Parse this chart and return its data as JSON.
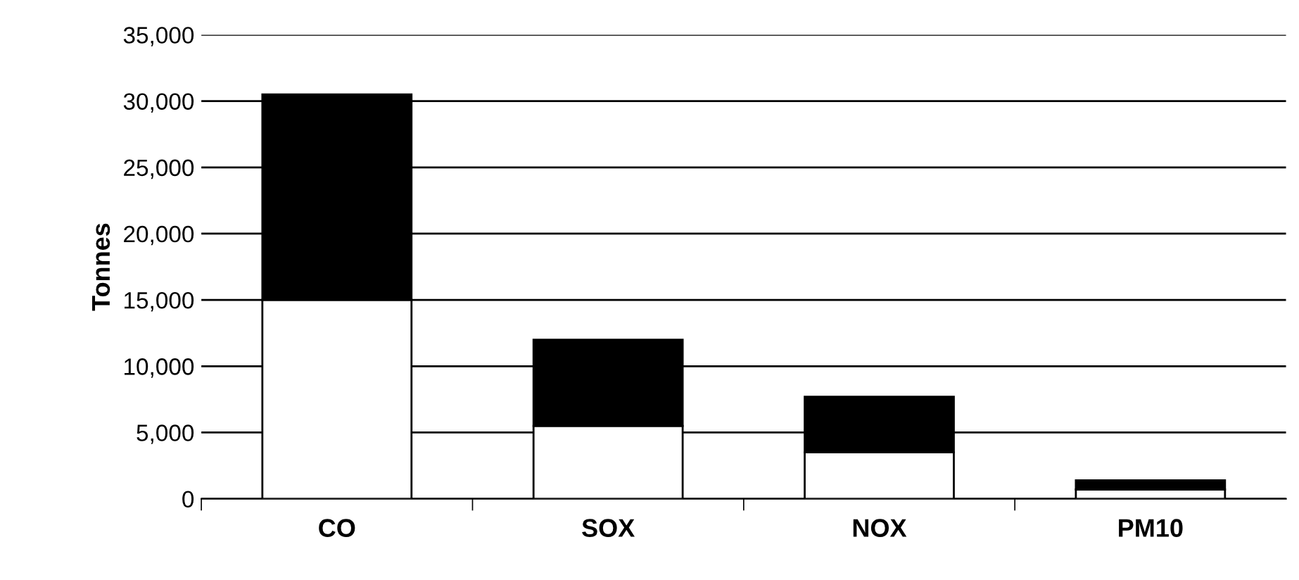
{
  "chart_data": {
    "type": "bar",
    "stacked": true,
    "ylabel": "Tonnes",
    "categories": [
      "CO",
      "SOX",
      "NOX",
      "PM10"
    ],
    "series": [
      {
        "color": "#ffffff",
        "values": [
          15000,
          5500,
          3500,
          700
        ]
      },
      {
        "color": "#000000",
        "values": [
          15500,
          6500,
          4200,
          700
        ]
      }
    ],
    "ylim": [
      0,
      35000
    ],
    "yticks": [
      0,
      {
        "value": 5000,
        "label": "5,000"
      },
      {
        "value": 10000,
        "label": "10,000"
      },
      {
        "value": 15000,
        "label": "15,000"
      },
      {
        "value": 20000,
        "label": "20,000"
      },
      {
        "value": 25000,
        "label": "25,000"
      },
      {
        "value": 30000,
        "label": "30,000"
      },
      {
        "value": 35000,
        "label": "35,000"
      }
    ],
    "grid": "y",
    "legend": false
  }
}
